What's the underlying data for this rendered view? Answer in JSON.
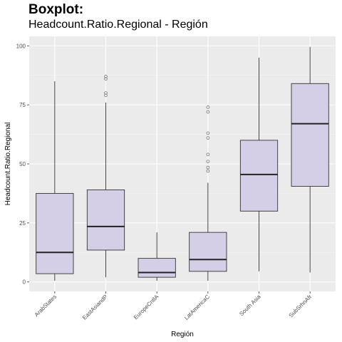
{
  "chart_data": {
    "type": "boxplot",
    "title": "Boxplot:",
    "subtitle": "Headcount.Ratio.Regional  - Región",
    "xlabel": "Región",
    "ylabel": "Headcount.Ratio.Regional",
    "ylim": [
      -4,
      104
    ],
    "yticks": [
      0,
      25,
      50,
      75,
      100
    ],
    "grid": true,
    "box_fill": "#d4cfe7",
    "panel_background": "#ebebeb",
    "categories": [
      "ArabStates",
      "EastAsiandP",
      "EuropeCntlA",
      "LatAmericaC",
      "South Asia",
      "SubSrhnAfr"
    ],
    "boxes": [
      {
        "category": "ArabStates",
        "whisker_low": 0.5,
        "q1": 3.5,
        "median": 12.5,
        "q3": 37.5,
        "whisker_high": 85,
        "outliers": []
      },
      {
        "category": "EastAsiandP",
        "whisker_low": 2,
        "q1": 13.5,
        "median": 23.5,
        "q3": 39,
        "whisker_high": 76,
        "outliers": [
          79,
          80,
          86,
          87
        ]
      },
      {
        "category": "EuropeCntlA",
        "whisker_low": 0.5,
        "q1": 2,
        "median": 4,
        "q3": 10,
        "whisker_high": 21,
        "outliers": []
      },
      {
        "category": "LatAmericaC",
        "whisker_low": 0.5,
        "q1": 4.5,
        "median": 9.5,
        "q3": 21,
        "whisker_high": 42,
        "outliers": [
          47,
          48.5,
          51,
          54,
          61,
          63,
          72,
          74
        ]
      },
      {
        "category": "South Asia",
        "whisker_low": 4.5,
        "q1": 30,
        "median": 45.5,
        "q3": 60,
        "whisker_high": 95,
        "outliers": []
      },
      {
        "category": "SubSrhnAfr",
        "whisker_low": 4,
        "q1": 40.5,
        "median": 67,
        "q3": 84,
        "whisker_high": 99.5,
        "outliers": []
      }
    ]
  }
}
